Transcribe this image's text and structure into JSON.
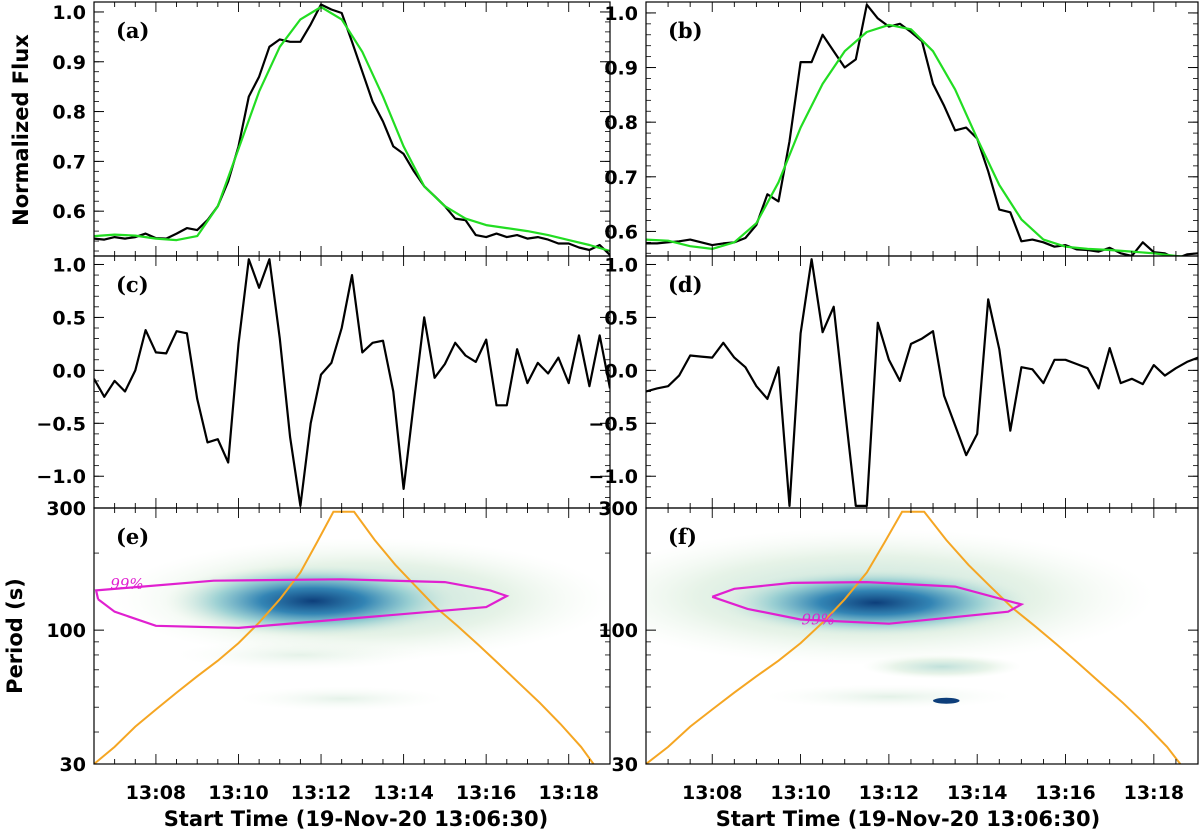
{
  "figure": {
    "xlabel": "Start Time (19-Nov-20 13:06:30)",
    "ylabel_flux": "Normalized Flux",
    "ylabel_period": "Period (s)"
  },
  "colors": {
    "data": "#000000",
    "fit": "#22dd22",
    "coi": "#f5a623",
    "contour": "#e020d0",
    "power_low": "#e6f2e2",
    "power_high": "#0d3e7a"
  },
  "chart_data": [
    {
      "id": "a",
      "label": "(a)",
      "type": "line",
      "xlim": [
        6.5,
        19.0
      ],
      "ylim": [
        0.51,
        1.02
      ],
      "yticks": [
        0.6,
        0.7,
        0.8,
        0.9,
        1.0
      ],
      "yticklabels": [
        "0.6",
        "0.7",
        "0.8",
        "0.9",
        "1.0"
      ],
      "series": [
        {
          "name": "observed",
          "x": [
            6.5,
            6.75,
            7.0,
            7.25,
            7.5,
            7.75,
            8.0,
            8.25,
            8.5,
            8.75,
            9.0,
            9.25,
            9.5,
            9.75,
            10.0,
            10.25,
            10.5,
            10.75,
            11.0,
            11.25,
            11.5,
            11.75,
            12.0,
            12.25,
            12.5,
            12.75,
            13.0,
            13.25,
            13.5,
            13.75,
            14.0,
            14.25,
            14.5,
            14.75,
            15.0,
            15.25,
            15.5,
            15.75,
            16.0,
            16.25,
            16.5,
            16.75,
            17.0,
            17.25,
            17.5,
            17.75,
            18.0,
            18.25,
            18.5,
            18.75,
            19.0
          ],
          "y": [
            0.545,
            0.543,
            0.548,
            0.545,
            0.548,
            0.555,
            0.546,
            0.545,
            0.555,
            0.566,
            0.562,
            0.582,
            0.61,
            0.66,
            0.73,
            0.83,
            0.87,
            0.93,
            0.945,
            0.94,
            0.94,
            0.975,
            1.015,
            1.005,
            0.998,
            0.94,
            0.88,
            0.82,
            0.78,
            0.73,
            0.715,
            0.68,
            0.65,
            0.63,
            0.61,
            0.585,
            0.582,
            0.552,
            0.548,
            0.555,
            0.548,
            0.552,
            0.545,
            0.548,
            0.543,
            0.535,
            0.535,
            0.527,
            0.522,
            0.532,
            0.512
          ]
        },
        {
          "name": "fit",
          "x": [
            6.5,
            7.0,
            7.5,
            8.0,
            8.5,
            9.0,
            9.5,
            10.0,
            10.5,
            11.0,
            11.5,
            12.0,
            12.5,
            13.0,
            13.5,
            14.0,
            14.5,
            15.0,
            15.5,
            16.0,
            16.5,
            17.0,
            17.5,
            18.0,
            18.5,
            19.0
          ],
          "y": [
            0.55,
            0.553,
            0.551,
            0.545,
            0.542,
            0.55,
            0.61,
            0.725,
            0.84,
            0.93,
            0.985,
            1.01,
            0.985,
            0.92,
            0.83,
            0.73,
            0.65,
            0.61,
            0.585,
            0.572,
            0.566,
            0.56,
            0.552,
            0.542,
            0.532,
            0.52
          ]
        }
      ]
    },
    {
      "id": "b",
      "label": "(b)",
      "type": "line",
      "xlim": [
        6.5,
        19.0
      ],
      "ylim": [
        0.555,
        1.02
      ],
      "yticks": [
        0.6,
        0.7,
        0.8,
        0.9,
        1.0
      ],
      "yticklabels": [
        "0.6",
        "0.7",
        "0.8",
        "0.9",
        "1.0"
      ],
      "series": [
        {
          "name": "observed",
          "x": [
            6.5,
            6.75,
            7.0,
            7.25,
            7.5,
            7.75,
            8.0,
            8.25,
            8.5,
            8.75,
            9.0,
            9.25,
            9.5,
            9.75,
            10.0,
            10.25,
            10.5,
            10.75,
            11.0,
            11.25,
            11.5,
            11.75,
            12.0,
            12.25,
            12.5,
            12.75,
            13.0,
            13.25,
            13.5,
            13.75,
            14.0,
            14.25,
            14.5,
            14.75,
            15.0,
            15.25,
            15.5,
            15.75,
            16.0,
            16.25,
            16.5,
            16.75,
            17.0,
            17.25,
            17.5,
            17.75,
            18.0,
            18.25,
            18.5,
            18.75,
            19.0
          ],
          "y": [
            0.578,
            0.578,
            0.58,
            0.582,
            0.585,
            0.58,
            0.575,
            0.578,
            0.58,
            0.588,
            0.612,
            0.668,
            0.655,
            0.765,
            0.91,
            0.91,
            0.96,
            0.93,
            0.9,
            0.915,
            1.015,
            0.99,
            0.975,
            0.98,
            0.965,
            0.948,
            0.87,
            0.83,
            0.785,
            0.79,
            0.77,
            0.71,
            0.64,
            0.635,
            0.582,
            0.585,
            0.58,
            0.572,
            0.575,
            0.567,
            0.566,
            0.563,
            0.57,
            0.56,
            0.555,
            0.58,
            0.562,
            0.56,
            0.55,
            0.558,
            0.56
          ]
        },
        {
          "name": "fit",
          "x": [
            6.5,
            7.0,
            7.5,
            8.0,
            8.5,
            9.0,
            9.5,
            10.0,
            10.5,
            11.0,
            11.5,
            12.0,
            12.5,
            13.0,
            13.5,
            14.0,
            14.5,
            15.0,
            15.5,
            16.0,
            16.5,
            17.0,
            17.5,
            18.0,
            18.5,
            19.0
          ],
          "y": [
            0.585,
            0.583,
            0.573,
            0.568,
            0.58,
            0.615,
            0.69,
            0.79,
            0.87,
            0.93,
            0.965,
            0.978,
            0.97,
            0.93,
            0.86,
            0.77,
            0.685,
            0.622,
            0.585,
            0.572,
            0.568,
            0.566,
            0.563,
            0.56,
            0.555,
            0.552
          ]
        }
      ]
    },
    {
      "id": "c",
      "label": "(c)",
      "type": "line",
      "xlim": [
        6.5,
        19.0
      ],
      "ylim": [
        -1.3,
        1.08
      ],
      "yticks": [
        -1.0,
        -0.5,
        0.0,
        0.5,
        1.0
      ],
      "yticklabels": [
        "−1.0",
        "−0.5",
        "0.0",
        "0.5",
        "1.0"
      ],
      "series": [
        {
          "name": "detrended",
          "x": [
            6.5,
            6.75,
            7.0,
            7.25,
            7.5,
            7.75,
            8.0,
            8.25,
            8.5,
            8.75,
            9.0,
            9.25,
            9.5,
            9.75,
            10.0,
            10.25,
            10.5,
            10.75,
            11.0,
            11.25,
            11.5,
            11.75,
            12.0,
            12.25,
            12.5,
            12.75,
            13.0,
            13.25,
            13.5,
            13.75,
            14.0,
            14.25,
            14.5,
            14.75,
            15.0,
            15.25,
            15.5,
            15.75,
            16.0,
            16.25,
            16.5,
            16.75,
            17.0,
            17.25,
            17.5,
            17.75,
            18.0,
            18.25,
            18.5,
            18.75,
            19.0
          ],
          "y": [
            -0.08,
            -0.25,
            -0.1,
            -0.2,
            0.0,
            0.38,
            0.17,
            0.16,
            0.37,
            0.35,
            -0.27,
            -0.68,
            -0.65,
            -0.87,
            0.25,
            1.05,
            0.78,
            1.05,
            0.3,
            -0.63,
            -1.28,
            -0.5,
            -0.04,
            0.07,
            0.4,
            0.9,
            0.17,
            0.26,
            0.28,
            -0.2,
            -1.12,
            -0.3,
            0.5,
            -0.07,
            0.06,
            0.26,
            0.14,
            0.08,
            0.29,
            -0.33,
            -0.33,
            0.2,
            -0.12,
            0.07,
            -0.03,
            0.12,
            -0.12,
            0.33,
            -0.15,
            0.33,
            -0.17
          ]
        }
      ]
    },
    {
      "id": "d",
      "label": "(d)",
      "type": "line",
      "xlim": [
        6.5,
        19.0
      ],
      "ylim": [
        -1.3,
        1.08
      ],
      "yticks": [
        -1.0,
        -0.5,
        0.0,
        0.5,
        1.0
      ],
      "yticklabels": [
        "−1.0",
        "−0.5",
        "0.0",
        "0.5",
        "1.0"
      ],
      "series": [
        {
          "name": "detrended",
          "x": [
            6.5,
            6.75,
            7.0,
            7.25,
            7.5,
            7.75,
            8.0,
            8.25,
            8.5,
            8.75,
            9.0,
            9.25,
            9.5,
            9.75,
            10.0,
            10.25,
            10.5,
            10.75,
            11.0,
            11.25,
            11.5,
            11.75,
            12.0,
            12.25,
            12.5,
            12.75,
            13.0,
            13.25,
            13.5,
            13.75,
            14.0,
            14.25,
            14.5,
            14.75,
            15.0,
            15.25,
            15.5,
            15.75,
            16.0,
            16.25,
            16.5,
            16.75,
            17.0,
            17.25,
            17.5,
            17.75,
            18.0,
            18.25,
            18.5,
            18.75,
            19.0
          ],
          "y": [
            -0.2,
            -0.17,
            -0.15,
            -0.05,
            0.14,
            0.13,
            0.12,
            0.26,
            0.12,
            0.03,
            -0.15,
            -0.27,
            0.03,
            -1.28,
            0.35,
            1.05,
            0.36,
            0.6,
            -0.35,
            -1.28,
            -1.28,
            0.45,
            0.1,
            -0.1,
            0.25,
            0.3,
            0.37,
            -0.24,
            -0.52,
            -0.8,
            -0.6,
            0.67,
            0.2,
            -0.57,
            0.03,
            0.01,
            -0.12,
            0.1,
            0.1,
            0.06,
            0.02,
            -0.17,
            0.21,
            -0.12,
            -0.08,
            -0.13,
            0.05,
            -0.05,
            0.02,
            0.08,
            0.12
          ]
        }
      ]
    },
    {
      "id": "e",
      "label": "(e)",
      "type": "heatmap",
      "xlim": [
        6.5,
        19.0
      ],
      "ylim": [
        30,
        300
      ],
      "yscale": "log",
      "yticks": [
        30,
        100,
        300
      ],
      "yticklabels": [
        "30",
        "100",
        "300"
      ],
      "xticks": [
        8,
        10,
        12,
        14,
        16,
        18
      ],
      "xticklabels": [
        "13:08",
        "13:10",
        "13:12",
        "13:14",
        "13:16",
        "13:18"
      ],
      "confidence_label": "99%",
      "coi": {
        "x": [
          6.5,
          7.0,
          7.5,
          8.0,
          8.5,
          9.0,
          9.5,
          10.0,
          10.5,
          11.0,
          11.5,
          11.9,
          12.3,
          12.8,
          13.3,
          13.8,
          14.3,
          14.8,
          15.3,
          15.8,
          16.3,
          16.8,
          17.3,
          17.8,
          18.3,
          18.6
        ],
        "y": [
          30,
          35,
          42,
          49,
          57,
          66,
          76,
          89,
          107,
          132,
          168,
          220,
          290,
          290,
          225,
          180,
          148,
          122,
          104,
          88,
          74,
          62,
          52,
          43,
          35,
          30
        ]
      },
      "contour_99": {
        "x": [
          6.6,
          6.55,
          9.4,
          12.5,
          15.0,
          16.1,
          16.5,
          16.0,
          13.0,
          10.0,
          8.0,
          7.0,
          6.6
        ],
        "y": [
          132,
          143,
          156,
          158,
          154,
          143,
          136,
          123,
          112,
          102,
          104,
          118,
          132
        ]
      },
      "power_blobs": [
        {
          "x": 11.8,
          "period": 130,
          "wx": 3.6,
          "wp": 0.15,
          "level": 1.0
        },
        {
          "x": 13.0,
          "period": 132,
          "wx": 6.0,
          "wp": 0.25,
          "level": 0.45
        },
        {
          "x": 11.5,
          "period": 80,
          "wx": 3.0,
          "wp": 0.06,
          "level": 0.15
        },
        {
          "x": 12.5,
          "period": 54,
          "wx": 2.5,
          "wp": 0.05,
          "level": 0.12
        }
      ]
    },
    {
      "id": "f",
      "label": "(f)",
      "type": "heatmap",
      "xlim": [
        6.5,
        19.0
      ],
      "ylim": [
        30,
        300
      ],
      "yscale": "log",
      "yticks": [
        30,
        100,
        300
      ],
      "yticklabels": [
        "30",
        "100",
        "300"
      ],
      "xticks": [
        8,
        10,
        12,
        14,
        16,
        18
      ],
      "xticklabels": [
        "13:08",
        "13:10",
        "13:12",
        "13:14",
        "13:16",
        "13:18"
      ],
      "confidence_label": "99%",
      "coi": {
        "x": [
          6.5,
          7.0,
          7.5,
          8.0,
          8.5,
          9.0,
          9.5,
          10.0,
          10.5,
          11.0,
          11.5,
          11.9,
          12.3,
          12.8,
          13.3,
          13.8,
          14.3,
          14.8,
          15.3,
          15.8,
          16.3,
          16.8,
          17.3,
          17.8,
          18.3,
          18.6
        ],
        "y": [
          30,
          35,
          42,
          49,
          57,
          66,
          76,
          89,
          107,
          132,
          168,
          220,
          290,
          290,
          225,
          180,
          148,
          122,
          104,
          88,
          74,
          62,
          52,
          43,
          35,
          30
        ]
      },
      "contour_99": {
        "x": [
          8.0,
          8.5,
          9.8,
          11.5,
          13.5,
          15.0,
          14.7,
          12.0,
          10.0,
          8.8,
          8.0
        ],
        "y": [
          135,
          145,
          153,
          154,
          148,
          126,
          118,
          106,
          110,
          121,
          135
        ]
      },
      "power_blobs": [
        {
          "x": 11.7,
          "period": 128,
          "wx": 3.6,
          "wp": 0.14,
          "level": 1.0
        },
        {
          "x": 11.5,
          "period": 135,
          "wx": 6.5,
          "wp": 0.28,
          "level": 0.45
        },
        {
          "x": 13.2,
          "period": 72,
          "wx": 1.8,
          "wp": 0.05,
          "level": 0.35
        },
        {
          "x": 12.0,
          "period": 55,
          "wx": 2.8,
          "wp": 0.05,
          "level": 0.2
        }
      ],
      "spots": [
        {
          "x": 13.3,
          "period": 53,
          "wx": 0.6,
          "wp": 0.012
        }
      ]
    }
  ]
}
